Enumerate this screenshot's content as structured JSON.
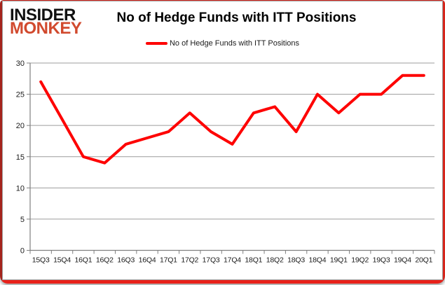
{
  "logo": {
    "line1": "INSIDER",
    "line2": "MONKEY",
    "line1_color": "#111111",
    "line2_color": "#d14a2e"
  },
  "header": {
    "title": "No of Hedge Funds with ITT Positions"
  },
  "legend": {
    "label": "No of Hedge Funds with ITT Positions",
    "marker_color": "#fe0000"
  },
  "frame": {
    "border_color": "#d6261c",
    "border_left_color": "#a5241c",
    "border_bottom_color": "#e8211a",
    "inner_border_color": "#9d9d9d"
  },
  "chart_data": {
    "type": "line",
    "title": "No of Hedge Funds with ITT Positions",
    "categories": [
      "15Q3",
      "15Q4",
      "16Q1",
      "16Q2",
      "16Q3",
      "16Q4",
      "17Q1",
      "17Q2",
      "17Q3",
      "17Q4",
      "18Q1",
      "18Q2",
      "18Q3",
      "18Q4",
      "19Q1",
      "19Q2",
      "19Q3",
      "19Q4",
      "20Q1"
    ],
    "series": [
      {
        "name": "No of Hedge Funds with ITT Positions",
        "color": "#fe0000",
        "values": [
          27,
          21,
          15,
          14,
          17,
          18,
          19,
          22,
          19,
          17,
          22,
          23,
          19,
          25,
          22,
          25,
          25,
          28,
          28
        ]
      }
    ],
    "xlabel": "",
    "ylabel": "",
    "ylim": [
      0,
      30
    ],
    "ytick_step": 5,
    "grid": true,
    "legend_position": "top",
    "gridline_color": "#9c9c9c",
    "axis_color": "#7f7f7f",
    "label_color": "#1a1a1a"
  }
}
